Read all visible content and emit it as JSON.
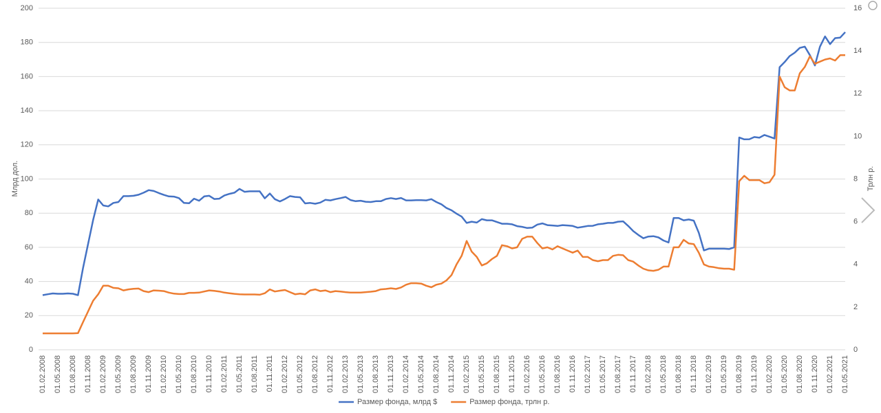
{
  "chart_data": {
    "type": "line",
    "y_label": "Млрд дол.",
    "y2_label": "Трлн р.",
    "ylim": [
      0,
      200
    ],
    "yticks": [
      0,
      20,
      40,
      60,
      80,
      100,
      120,
      140,
      160,
      180,
      200
    ],
    "y2lim": [
      0,
      16
    ],
    "y2ticks": [
      0,
      2,
      4,
      6,
      8,
      10,
      12,
      14,
      16
    ],
    "grid": true,
    "legend": "bottom",
    "categories": [
      "01.02.2008",
      null,
      null,
      "01.05.2008",
      null,
      null,
      "01.08.2008",
      null,
      null,
      "01.11.2008",
      null,
      null,
      "01.02.2009",
      null,
      null,
      "01.05.2009",
      null,
      null,
      "01.08.2009",
      null,
      null,
      "01.11.2009",
      null,
      null,
      "01.02.2010",
      null,
      null,
      "01.05.2010",
      null,
      null,
      "01.08.2010",
      null,
      null,
      "01.11.2010",
      null,
      null,
      "01.02.2011",
      null,
      null,
      "01.05.2011",
      null,
      null,
      "01.08.2011",
      null,
      null,
      "01.11.2011",
      null,
      null,
      "01.02.2012",
      null,
      null,
      "01.05.2012",
      null,
      null,
      "01.08.2012",
      null,
      null,
      "01.11.2012",
      null,
      null,
      "01.02.2013",
      null,
      null,
      "01.05.2013",
      null,
      null,
      "01.08.2013",
      null,
      null,
      "01.11.2013",
      null,
      null,
      "01.02.2014",
      null,
      null,
      "01.05.2014",
      null,
      null,
      "01.08.2014",
      null,
      null,
      "01.11.2014",
      null,
      null,
      "01.02.2015",
      null,
      null,
      "01.05.2015",
      null,
      null,
      "01.08.2015",
      null,
      null,
      "01.11.2015",
      null,
      null,
      "01.02.2016",
      null,
      null,
      "01.05.2016",
      null,
      null,
      "01.08.2016",
      null,
      null,
      "01.11.2016",
      null,
      null,
      "01.02.2017",
      null,
      null,
      "01.05.2017",
      null,
      null,
      "01.08.2017",
      null,
      null,
      "01.11.2017",
      null,
      null,
      "01.02.2018",
      null,
      null,
      "01.05.2018",
      null,
      null,
      "01.08.2018",
      null,
      null,
      "01.11.2018",
      null,
      null,
      "01.02.2019",
      null,
      null,
      "01.05.2019",
      null,
      null,
      "01.08.2019",
      null,
      null,
      "01.11.2019",
      null,
      null,
      "01.02.2020",
      null,
      null,
      "01.05.2020",
      null,
      null,
      "01.08.2020",
      null,
      null,
      "01.11.2020",
      null,
      null,
      "01.02.2021",
      null,
      null,
      "01.05.2021"
    ],
    "series": [
      {
        "name": "Размер фонда, млрд $",
        "color": "#4472c4",
        "values": [
          32,
          32.5,
          33,
          32.8,
          32.8,
          33,
          32.8,
          32,
          48,
          62,
          76,
          88,
          84.5,
          84,
          86,
          86.5,
          90,
          90,
          90.2,
          90.8,
          92,
          93.5,
          93,
          91.8,
          90.7,
          89.8,
          89.7,
          88.8,
          86,
          85.8,
          88.5,
          87.3,
          89.8,
          90.2,
          88.3,
          88.5,
          90.4,
          91.3,
          92,
          94.2,
          92.5,
          92.8,
          92.8,
          92.8,
          88.7,
          91.5,
          88.2,
          86.9,
          88.3,
          90,
          89.5,
          89.3,
          85.7,
          86,
          85.5,
          86.2,
          87.8,
          87.5,
          88.2,
          88.8,
          89.5,
          87.7,
          87,
          87.3,
          86.7,
          86.5,
          87,
          87,
          88.3,
          88.8,
          88.3,
          88.9,
          87.5,
          87.5,
          87.6,
          87.6,
          87.5,
          88.2,
          86.5,
          85.2,
          83,
          81.7,
          79.7,
          78,
          74.3,
          75,
          74.5,
          76.5,
          75.8,
          75.8,
          74.8,
          73.8,
          73.8,
          73.5,
          72.4,
          72,
          71.3,
          71.5,
          73.3,
          74,
          73,
          72.8,
          72.5,
          73,
          72.8,
          72.5,
          71.5,
          72,
          72.5,
          72.6,
          73.5,
          73.8,
          74.3,
          74.3,
          75,
          75.2,
          72.5,
          69.5,
          67.3,
          65.3,
          66.3,
          66.5,
          65.8,
          64,
          62.8,
          77.2,
          77.2,
          75.8,
          76.3,
          75.6,
          68.5,
          58.2,
          59.2,
          59.2,
          59.2,
          59.2,
          59,
          60,
          124.3,
          123.2,
          123.3,
          124.6,
          124.2,
          125.8,
          124.8,
          123.7,
          165.5,
          168.5,
          172,
          174,
          176.8,
          177.5,
          172.5,
          166.5,
          177.5,
          183.5,
          179,
          182.5,
          182.8,
          186
        ]
      },
      {
        "name": "Размер фонда, трлн р.",
        "color": "#ed7d31",
        "axis": "y2",
        "values": [
          0.77,
          0.77,
          0.77,
          0.77,
          0.77,
          0.77,
          0.77,
          0.78,
          1.3,
          1.8,
          2.3,
          2.6,
          3.0,
          3.0,
          2.9,
          2.88,
          2.78,
          2.83,
          2.86,
          2.87,
          2.75,
          2.7,
          2.78,
          2.77,
          2.75,
          2.68,
          2.63,
          2.61,
          2.61,
          2.67,
          2.67,
          2.68,
          2.73,
          2.78,
          2.76,
          2.73,
          2.68,
          2.65,
          2.62,
          2.6,
          2.59,
          2.59,
          2.59,
          2.58,
          2.65,
          2.83,
          2.73,
          2.77,
          2.8,
          2.7,
          2.6,
          2.63,
          2.6,
          2.78,
          2.83,
          2.75,
          2.78,
          2.7,
          2.75,
          2.73,
          2.7,
          2.68,
          2.68,
          2.68,
          2.7,
          2.72,
          2.75,
          2.83,
          2.85,
          2.88,
          2.85,
          2.92,
          3.05,
          3.12,
          3.12,
          3.1,
          3.0,
          2.93,
          3.05,
          3.1,
          3.25,
          3.5,
          4.0,
          4.4,
          5.1,
          4.6,
          4.35,
          3.95,
          4.05,
          4.25,
          4.4,
          4.9,
          4.85,
          4.75,
          4.8,
          5.2,
          5.3,
          5.3,
          5.0,
          4.75,
          4.8,
          4.7,
          4.85,
          4.75,
          4.65,
          4.55,
          4.65,
          4.35,
          4.35,
          4.2,
          4.15,
          4.2,
          4.2,
          4.4,
          4.45,
          4.43,
          4.2,
          4.13,
          3.95,
          3.8,
          3.72,
          3.7,
          3.75,
          3.9,
          3.9,
          4.8,
          4.8,
          5.15,
          4.98,
          4.95,
          4.55,
          4.0,
          3.9,
          3.87,
          3.82,
          3.8,
          3.8,
          3.75,
          7.9,
          8.15,
          7.95,
          7.95,
          7.95,
          7.8,
          7.85,
          8.2,
          12.8,
          12.3,
          12.15,
          12.15,
          12.95,
          13.25,
          13.75,
          13.4,
          13.5,
          13.6,
          13.65,
          13.55,
          13.8,
          13.8
        ]
      }
    ]
  }
}
